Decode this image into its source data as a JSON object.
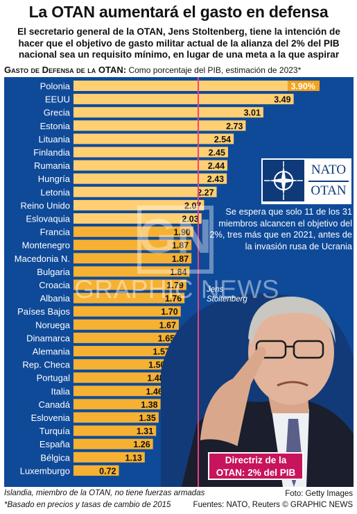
{
  "headline": "La OTAN aumentará el gasto en defensa",
  "subhead": "El secretario general de la OTAN, Jens Stoltenberg, tiene la intención de hacer que el objetivo de gasto militar actual de la alianza del 2% del PIB nacional sea un requisito mínimo, en lugar de una meta a la que aspirar",
  "chart_header_bold": "Gasto de Defensa de la OTAN:",
  "chart_header_rest": " Como porcentaje del PIB, estimación de 2023*",
  "chart_data": {
    "type": "bar",
    "orientation": "horizontal",
    "categories": [
      "Polonia",
      "EEUU",
      "Grecia",
      "Estonia",
      "Lituania",
      "Finlandia",
      "Rumania",
      "Hungría",
      "Letonia",
      "Reino Unido",
      "Eslovaquia",
      "Francia",
      "Montenegro",
      "Macedonia N.",
      "Bulgaria",
      "Croacia",
      "Albania",
      "Países Bajos",
      "Noruega",
      "Dinamarca",
      "Alemania",
      "Rep. Checa",
      "Portugal",
      "Italia",
      "Canadá",
      "Eslovenia",
      "Turquía",
      "España",
      "Bélgica",
      "Luxemburgo"
    ],
    "values": [
      3.9,
      3.49,
      3.01,
      2.73,
      2.54,
      2.45,
      2.44,
      2.43,
      2.27,
      2.07,
      2.03,
      1.9,
      1.87,
      1.87,
      1.84,
      1.79,
      1.76,
      1.7,
      1.67,
      1.65,
      1.57,
      1.5,
      1.48,
      1.46,
      1.38,
      1.35,
      1.31,
      1.26,
      1.13,
      0.72
    ],
    "value_labels": [
      "3.90%",
      "3.49",
      "3.01",
      "2.73",
      "2.54",
      "2.45",
      "2.44",
      "2.43",
      "2.27",
      "2.07",
      "2.03",
      "1.90",
      "1.87",
      "1.87",
      "1.84",
      "1.79",
      "1.76",
      "1.70",
      "1.67",
      "1.65",
      "1.57",
      "1.50",
      "1.48",
      "1.46",
      "1.38",
      "1.35",
      "1.31",
      "1.26",
      "1.13",
      "0.72"
    ],
    "reference_line": 2.0,
    "xlim": [
      0,
      4.0
    ],
    "colors": {
      "above_target_bar": "#ffcf72",
      "below_target_bar": "#f6b133",
      "panel": "#0f4a99",
      "reference_line": "#e8447f",
      "top_value_fill": "#f6a21a"
    }
  },
  "nato_logo_top": "NATO",
  "nato_logo_bottom": "OTAN",
  "callout": "Se espera que solo 11 de los 31 miembros alcancen el objetivo del 2%, tres más que en 2021, antes de la invasión rusa de Ucrania",
  "photo_caption": "Jens Stoltenberg",
  "guideline_box": "Directriz de la OTAN: 2% del PIB",
  "watermark_logo": "GN",
  "watermark_word": "GRAPHIC NEWS",
  "footnote1": "Islandia, miembro de la OTAN, no tiene fuerzas armadas",
  "footnote2": "*Basado en precios y tasas de cambio de 2015",
  "photo_credit": "Foto: Getty Images",
  "sources": "Fuentes: NATO, Reuters  © GRAPHIC NEWS"
}
